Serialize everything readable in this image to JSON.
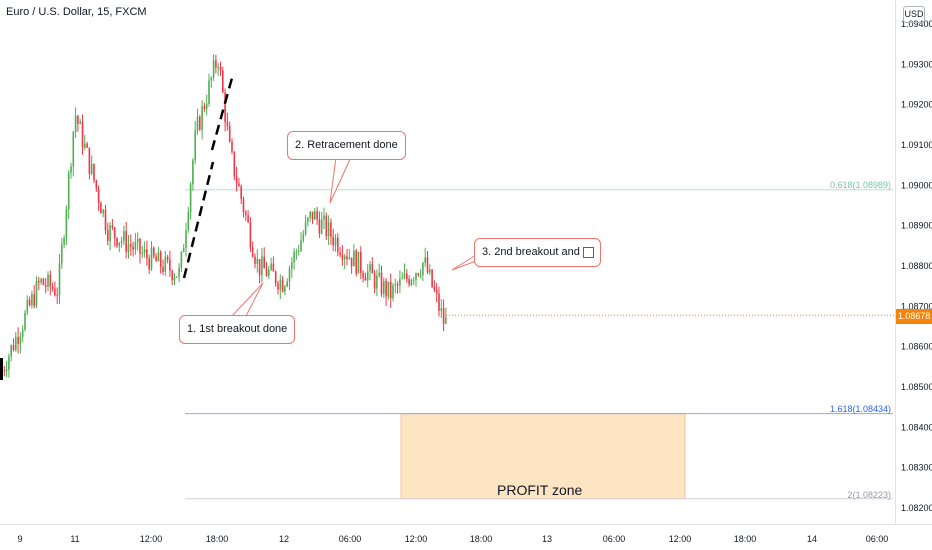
{
  "header": {
    "title": "Euro / U.S. Dollar, 15, FXCM",
    "currency_button": "USD"
  },
  "last_price": "1.08678",
  "annotations": {
    "callout_1": "1. 1st breakout done",
    "callout_2": "2. Retracement done",
    "callout_3": "3. 2nd breakout and",
    "zone_label": "PROFIT zone"
  },
  "fib_levels": [
    {
      "label": "0.618(1.08989)",
      "value": 1.08989,
      "color": "#7bc5a3"
    },
    {
      "label": "1.618(1.08434)",
      "value": 1.08434,
      "color": "#2962ff"
    },
    {
      "label": "2(1.08223)",
      "value": 1.08223,
      "color": "#9598a1"
    }
  ],
  "colors": {
    "up": "#26a69a",
    "up_candle": "#4caf50",
    "down": "#f23645",
    "zone_fill": "#fde4c3",
    "zone_border": "#f7c48c",
    "callout_border": "#f0746a",
    "last_price_bg": "#f5850a"
  },
  "chart_data": {
    "type": "candlestick",
    "title": "Euro / U.S. Dollar, 15, FXCM",
    "y_ticks": [
      "1.09400",
      "1.09300",
      "1.09200",
      "1.09100",
      "1.09000",
      "1.08900",
      "1.08800",
      "1.08700",
      "1.08600",
      "1.08500",
      "1.08400",
      "1.08300",
      "1.08200"
    ],
    "ylim": [
      1.0818,
      1.0944
    ],
    "x_ticks": [
      "9",
      "11",
      "12:00",
      "18:00",
      "12",
      "06:00",
      "12:00",
      "18:00",
      "13",
      "06:00",
      "12:00",
      "18:00",
      "14",
      "06:00"
    ],
    "series": [
      {
        "name": "EURUSD",
        "close_path": [
          {
            "x": "9",
            "y": 1.0853
          },
          {
            "x": "9 12:00",
            "y": 1.0876
          },
          {
            "x": "10",
            "y": 1.0874
          },
          {
            "x": "11",
            "y": 1.0918
          },
          {
            "x": "11 06:00",
            "y": 1.0889
          },
          {
            "x": "11 12:00",
            "y": 1.0882
          },
          {
            "x": "11 16:00",
            "y": 1.0878
          },
          {
            "x": "11 18:00",
            "y": 1.0913
          },
          {
            "x": "11 19:30",
            "y": 1.0932
          },
          {
            "x": "11 21:00",
            "y": 1.0908
          },
          {
            "x": "12",
            "y": 1.088
          },
          {
            "x": "12 03:00",
            "y": 1.0876
          },
          {
            "x": "12 06:00",
            "y": 1.0893
          },
          {
            "x": "12 09:00",
            "y": 1.0883
          },
          {
            "x": "12 12:00",
            "y": 1.0873
          },
          {
            "x": "12 14:00",
            "y": 1.0881
          },
          {
            "x": "12 15:00",
            "y": 1.0866
          }
        ]
      }
    ],
    "last_value": 1.08678,
    "fib_levels": [
      {
        "ratio": "0.618",
        "value": 1.08989
      },
      {
        "ratio": "1.618",
        "value": 1.08434
      },
      {
        "ratio": "2",
        "value": 1.08223
      }
    ],
    "profit_zone": {
      "y_range": [
        1.08223,
        1.08434
      ],
      "x_range": [
        "12 09:30",
        "13 12:00"
      ]
    }
  }
}
